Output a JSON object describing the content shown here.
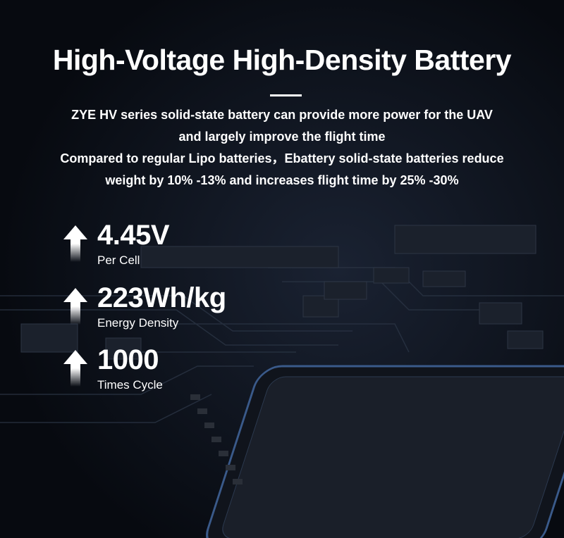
{
  "title": "High-Voltage High-Density Battery",
  "description": [
    "ZYE HV series solid-state battery can provide more power for the UAV",
    "and largely improve the flight time",
    "Compared to regular Lipo batteries，Ebattery solid-state batteries reduce",
    "weight by 10% -13% and increases flight time by 25% -30%"
  ],
  "stats": [
    {
      "value": "4.45V",
      "label": "Per Cell",
      "icon": "arrow-up-icon"
    },
    {
      "value": "223Wh/kg",
      "label": "Energy Density",
      "icon": "arrow-up-icon"
    },
    {
      "value": "1000",
      "label": "Times Cycle",
      "icon": "arrow-up-icon"
    }
  ],
  "colors": {
    "background": "#0b0f18",
    "chip": "#1a1f29",
    "chip_edge": "#3a5a8a"
  }
}
